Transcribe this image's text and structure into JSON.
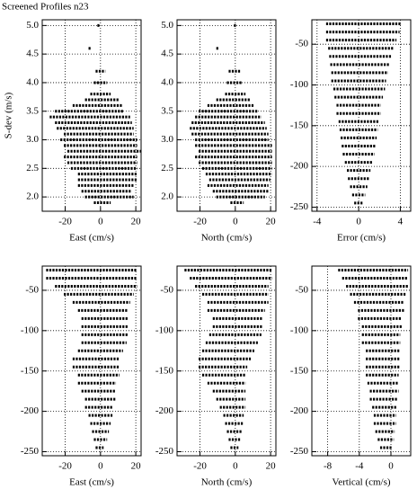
{
  "title": "Screened Profiles n23",
  "chart_data": [
    {
      "type": "range",
      "xlabel": "East (cm/s)",
      "ylabel": "S-dev (m/s)",
      "xlim": [
        -33,
        23
      ],
      "xticks": [
        -20,
        0,
        20
      ],
      "ylim": [
        1.75,
        5.1
      ],
      "yticks": [
        {
          "value": 2,
          "label": "2.0"
        },
        2.5,
        {
          "value": 3,
          "label": "3.0"
        },
        3.5,
        {
          "value": 4,
          "label": "4.0"
        },
        4.5,
        {
          "value": 5,
          "label": "5.0"
        }
      ],
      "levels": [
        1.9,
        2.0,
        2.1,
        2.2,
        2.3,
        2.4,
        2.5,
        2.6,
        2.7,
        2.8,
        2.9,
        3.0,
        3.1,
        3.2,
        3.3,
        3.4,
        3.5,
        3.6,
        3.7,
        3.8,
        4.0,
        4.2,
        4.6,
        5.0
      ],
      "xmin": [
        -3,
        -8,
        -10,
        -12,
        -12,
        -12,
        -16,
        -18,
        -20,
        -18,
        -20,
        -22,
        -20,
        -24,
        -25,
        -28,
        -25,
        -15,
        -8,
        -5,
        -3,
        -2,
        -6,
        -1
      ],
      "xmax": [
        5,
        18,
        17,
        18,
        20,
        20,
        20,
        20,
        20,
        22,
        20,
        20,
        18,
        18,
        17,
        16,
        12,
        12,
        10,
        5,
        3,
        2,
        -6,
        -1
      ]
    },
    {
      "type": "range",
      "xlabel": "North (cm/s)",
      "xlim": [
        -33,
        23
      ],
      "xticks": [
        -20,
        0,
        20
      ],
      "ylim": [
        1.75,
        5.1
      ],
      "yticks": [
        {
          "value": 2,
          "label": "2.0"
        },
        2.5,
        {
          "value": 3,
          "label": "3.0"
        },
        3.5,
        {
          "value": 4,
          "label": "4.0"
        },
        4.5,
        {
          "value": 5,
          "label": "5.0"
        }
      ],
      "levels": [
        1.9,
        2.0,
        2.1,
        2.2,
        2.3,
        2.4,
        2.5,
        2.6,
        2.7,
        2.8,
        2.9,
        3.0,
        3.1,
        3.2,
        3.3,
        3.4,
        3.5,
        3.6,
        3.7,
        3.8,
        4.0,
        4.2,
        4.6,
        5.0
      ],
      "xmin": [
        -2,
        -10,
        -12,
        -15,
        -14,
        -16,
        -18,
        -20,
        -22,
        -20,
        -22,
        -22,
        -24,
        -25,
        -24,
        -22,
        -20,
        -15,
        -10,
        -5,
        -4,
        -3,
        -10,
        0
      ],
      "xmax": [
        4,
        16,
        18,
        18,
        19,
        20,
        20,
        20,
        20,
        20,
        20,
        18,
        18,
        17,
        16,
        14,
        12,
        10,
        8,
        5,
        3,
        2,
        -10,
        0
      ]
    },
    {
      "type": "range",
      "xlabel": "Error (cm/s)",
      "xlim": [
        -4.5,
        5
      ],
      "xticks": [
        -4,
        0,
        4
      ],
      "ylim": [
        -255,
        -20
      ],
      "yticks": [
        -250,
        -200,
        -150,
        -100,
        -50
      ],
      "levels": [
        -25,
        -35,
        -45,
        -55,
        -65,
        -75,
        -85,
        -95,
        -105,
        -115,
        -125,
        -135,
        -145,
        -155,
        -165,
        -175,
        -185,
        -195,
        -205,
        -215,
        -225,
        -235,
        -245
      ],
      "xmin": [
        -3,
        -3,
        -3,
        -2.8,
        -2.7,
        -2.6,
        -2.5,
        -2.5,
        -2.3,
        -2.2,
        -2,
        -2,
        -1.8,
        -1.7,
        -1.6,
        -1.5,
        -1.4,
        -1.2,
        -1,
        -0.9,
        -0.7,
        -0.5,
        -0.3
      ],
      "xmax": [
        4,
        3.8,
        3.5,
        3.2,
        3,
        2.8,
        2.7,
        2.5,
        2.4,
        2.2,
        2,
        2,
        1.8,
        1.7,
        1.6,
        1.5,
        1.4,
        1.2,
        1,
        0.9,
        0.7,
        0.5,
        0.3
      ]
    },
    {
      "type": "range",
      "xlabel": "East (cm/s)",
      "xlim": [
        -33,
        23
      ],
      "xticks": [
        -20,
        0,
        20
      ],
      "ylim": [
        -255,
        -20
      ],
      "yticks": [
        -250,
        -200,
        -150,
        -100,
        -50
      ],
      "levels": [
        -25,
        -35,
        -45,
        -55,
        -65,
        -75,
        -85,
        -95,
        -105,
        -115,
        -125,
        -135,
        -145,
        -155,
        -165,
        -175,
        -185,
        -195,
        -205,
        -215,
        -225,
        -235,
        -245
      ],
      "xmin": [
        -30,
        -30,
        -25,
        -20,
        -15,
        -12,
        -10,
        -10,
        -10,
        -10,
        -12,
        -15,
        -15,
        -12,
        -12,
        -10,
        -8,
        -8,
        -6,
        -5,
        -4,
        -3,
        -2
      ],
      "xmax": [
        20,
        20,
        20,
        18,
        16,
        15,
        15,
        15,
        15,
        14,
        12,
        10,
        10,
        10,
        8,
        8,
        8,
        6,
        6,
        5,
        4,
        3,
        1
      ]
    },
    {
      "type": "range",
      "xlabel": "North (cm/s)",
      "xlim": [
        -33,
        23
      ],
      "xticks": [
        -20,
        0,
        20
      ],
      "ylim": [
        -255,
        -20
      ],
      "yticks": [
        -250,
        -200,
        -150,
        -100,
        -50
      ],
      "levels": [
        -25,
        -35,
        -45,
        -55,
        -65,
        -75,
        -85,
        -95,
        -105,
        -115,
        -125,
        -135,
        -145,
        -155,
        -165,
        -175,
        -185,
        -195,
        -205,
        -215,
        -225,
        -235,
        -245
      ],
      "xmin": [
        -28,
        -25,
        -22,
        -18,
        -15,
        -15,
        -12,
        -12,
        -14,
        -16,
        -18,
        -20,
        -20,
        -18,
        -15,
        -12,
        -10,
        -8,
        -6,
        -5,
        -4,
        -3,
        -2
      ],
      "xmax": [
        20,
        20,
        18,
        18,
        18,
        16,
        15,
        15,
        14,
        12,
        10,
        8,
        6,
        5,
        5,
        5,
        5,
        5,
        4,
        4,
        3,
        2,
        1
      ]
    },
    {
      "type": "range",
      "xlabel": "Vertical (cm/s)",
      "xlim": [
        -10,
        2.5
      ],
      "xticks": [
        -8,
        -4,
        0
      ],
      "ylim": [
        -255,
        -20
      ],
      "yticks": [
        -250,
        -200,
        -150,
        -100,
        -50
      ],
      "levels": [
        -25,
        -35,
        -45,
        -55,
        -65,
        -75,
        -85,
        -95,
        -105,
        -115,
        -125,
        -135,
        -145,
        -155,
        -165,
        -175,
        -185,
        -195,
        -205,
        -215,
        -225,
        -235,
        -245
      ],
      "xmin": [
        -6.5,
        -6,
        -5.5,
        -5,
        -4.5,
        -4,
        -4,
        -3.5,
        -3.5,
        -3.5,
        -3,
        -3,
        -3,
        -3,
        -2.8,
        -2.5,
        -2.5,
        -2.2,
        -2,
        -2,
        -1.8,
        -1.5,
        -1.2
      ],
      "xmax": [
        2,
        2,
        2,
        1.8,
        1.5,
        1.5,
        1.2,
        1.2,
        1,
        1,
        1,
        1,
        1,
        0.8,
        0.8,
        0.8,
        0.6,
        0.6,
        0.5,
        0.5,
        0.3,
        0.2,
        0
      ]
    }
  ]
}
